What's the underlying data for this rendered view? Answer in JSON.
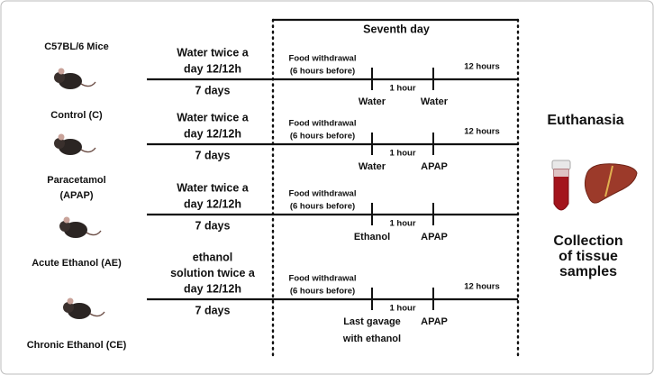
{
  "left_labels": [
    [
      "C57BL/6 Mice"
    ],
    [
      "Control (C)"
    ],
    [
      "Paracetamol",
      "(APAP)"
    ],
    [
      "Acute Ethanol (AE)"
    ],
    [
      "Chronic Ethanol (CE)"
    ]
  ],
  "seventh_day": "Seventh day",
  "rows": [
    {
      "treatment": [
        "Water twice a",
        "day 12/12h"
      ],
      "duration": "7 days",
      "withdrawal": [
        "Food withdrawal",
        "(6 hours before)"
      ],
      "interval": "1 hour",
      "end": "12 hours",
      "first_dose": [
        "Water"
      ],
      "second_dose": [
        "Water"
      ]
    },
    {
      "treatment": [
        "Water twice a",
        "day 12/12h"
      ],
      "duration": "7 days",
      "withdrawal": [
        "Food withdrawal",
        "(6 hours before)"
      ],
      "interval": "1 hour",
      "end": "12 hours",
      "first_dose": [
        "Water"
      ],
      "second_dose": [
        "APAP"
      ]
    },
    {
      "treatment": [
        "Water twice a",
        "day 12/12h"
      ],
      "duration": "7 days",
      "withdrawal": [
        "Food withdrawal",
        "(6 hours before)"
      ],
      "interval": "1 hour",
      "first_dose": [
        "Ethanol"
      ],
      "second_dose": [
        "APAP"
      ]
    },
    {
      "treatment": [
        "ethanol",
        "solution twice a",
        "day 12/12h"
      ],
      "duration": "7 days",
      "withdrawal": [
        "Food withdrawal",
        "(6 hours before)"
      ],
      "interval": "1 hour",
      "end": "12 hours",
      "first_dose": [
        "Last gavage",
        "with ethanol"
      ],
      "second_dose": [
        "APAP"
      ]
    }
  ],
  "outcome": {
    "title": "Euthanasia",
    "collection": [
      "Collection",
      "of tissue",
      "samples"
    ]
  }
}
